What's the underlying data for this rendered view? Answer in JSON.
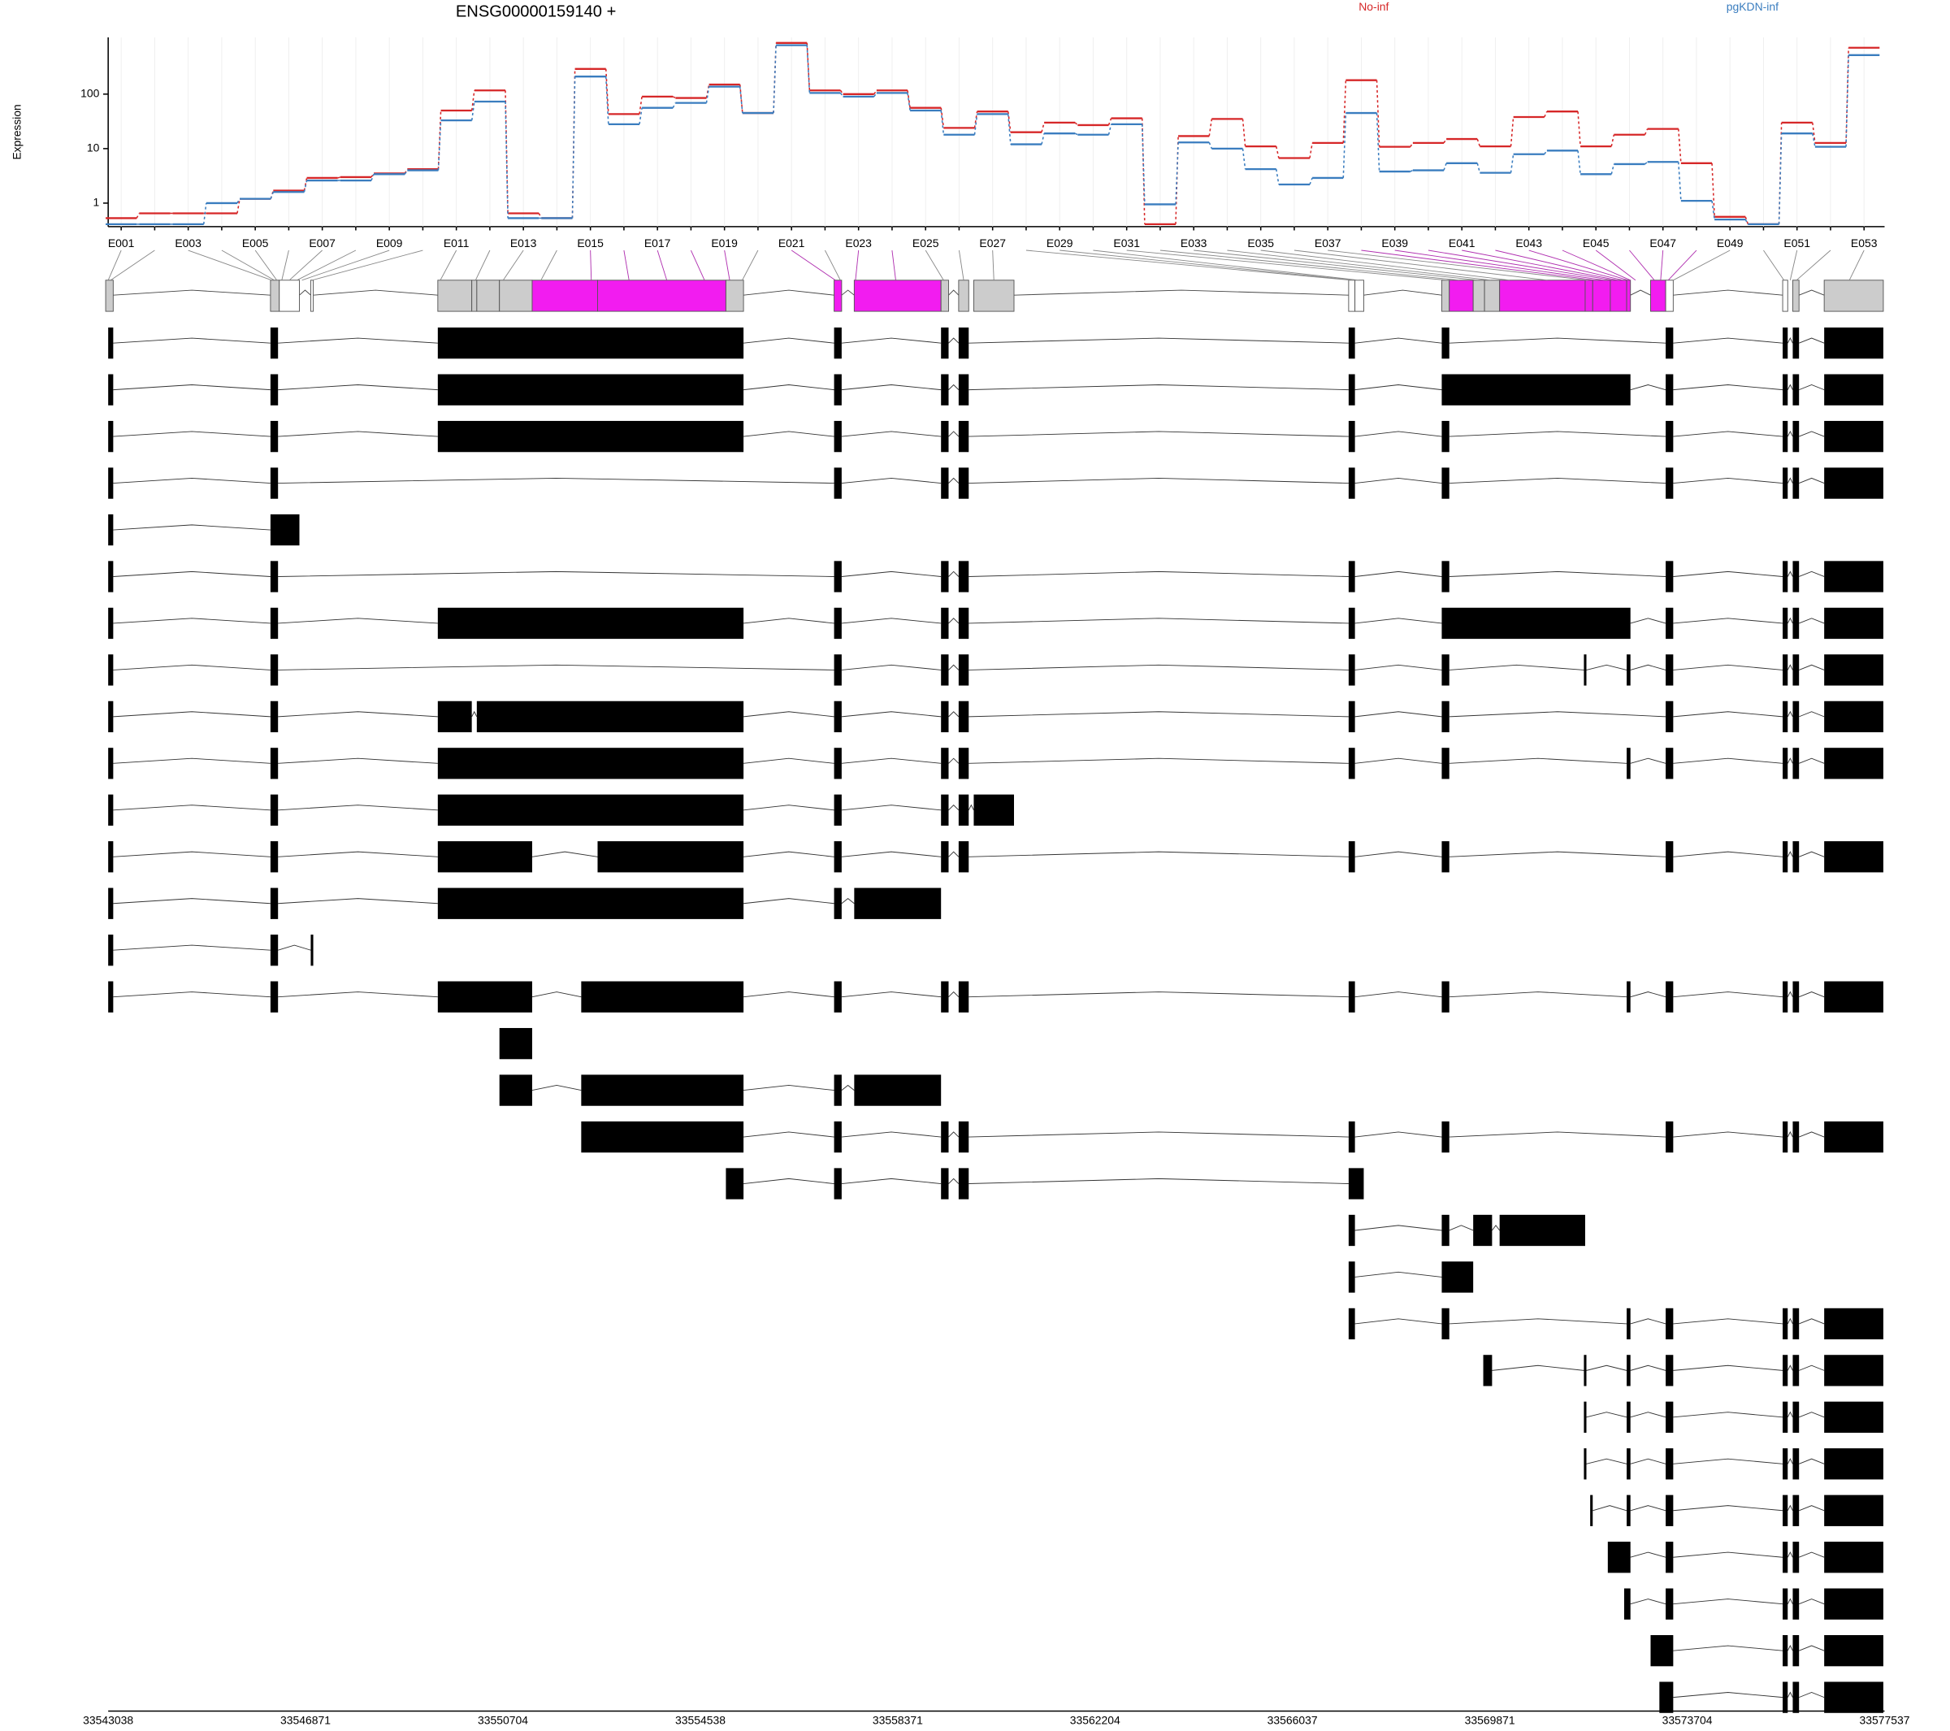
{
  "chart_data": {
    "type": "line",
    "title": "ENSG00000159140 +",
    "y_label": "Expression",
    "log_scale": true,
    "grid": true,
    "categories": [
      "E001",
      null,
      "E003",
      null,
      "E005",
      null,
      "E007",
      null,
      "E009",
      null,
      "E011",
      null,
      "E013",
      null,
      "E015",
      null,
      "E017",
      null,
      "E019",
      null,
      "E021",
      null,
      "E023",
      null,
      "E025",
      null,
      "E027",
      null,
      "E029",
      null,
      "E031",
      null,
      "E033",
      null,
      "E035",
      null,
      "E037",
      null,
      "E039",
      null,
      "E041",
      null,
      "E043",
      null,
      "E045",
      null,
      "E047",
      null,
      "E049",
      null,
      "E051",
      null,
      "E053"
    ],
    "series": [
      {
        "name": "No-inf",
        "color": "#d62728",
        "values": [
          0.53,
          0.65,
          0.65,
          0.65,
          1.2,
          1.7,
          2.9,
          3.0,
          3.5,
          4.2,
          50,
          117,
          0.65,
          0.53,
          290,
          43,
          90,
          85,
          150,
          45,
          870,
          117,
          100,
          117,
          56,
          24,
          48,
          20,
          30,
          27,
          36,
          0.41,
          17,
          35,
          11,
          6.7,
          12.7,
          180,
          10.8,
          12.7,
          15,
          11,
          38,
          48,
          11,
          18,
          23,
          5.4,
          0.56,
          0.41,
          30,
          12.7,
          710
        ]
      },
      {
        "name": "pgKDN-inf",
        "color": "#3a7dbf",
        "values": [
          0.41,
          0.41,
          0.41,
          1.0,
          1.2,
          1.6,
          2.6,
          2.6,
          3.4,
          4.0,
          33,
          73,
          0.53,
          0.53,
          210,
          28,
          56,
          69,
          137,
          45,
          790,
          105,
          90,
          105,
          50,
          18,
          43,
          12,
          19,
          18,
          28,
          0.95,
          13,
          10,
          4.2,
          2.2,
          2.9,
          45,
          3.8,
          4.0,
          5.4,
          3.6,
          7.9,
          9.2,
          3.4,
          5.2,
          5.7,
          1.1,
          0.5,
          0.41,
          19,
          10.8,
          520
        ]
      }
    ],
    "ylim": [
      0.37,
      1100
    ],
    "yticks": [
      1,
      10,
      100
    ],
    "genome": {
      "xlim": [
        33543038,
        33577537
      ],
      "xticks": [
        33543038,
        33546871,
        33550704,
        33554538,
        33558371,
        33562204,
        33566037,
        33569871,
        33573704,
        33577537
      ]
    }
  }
}
